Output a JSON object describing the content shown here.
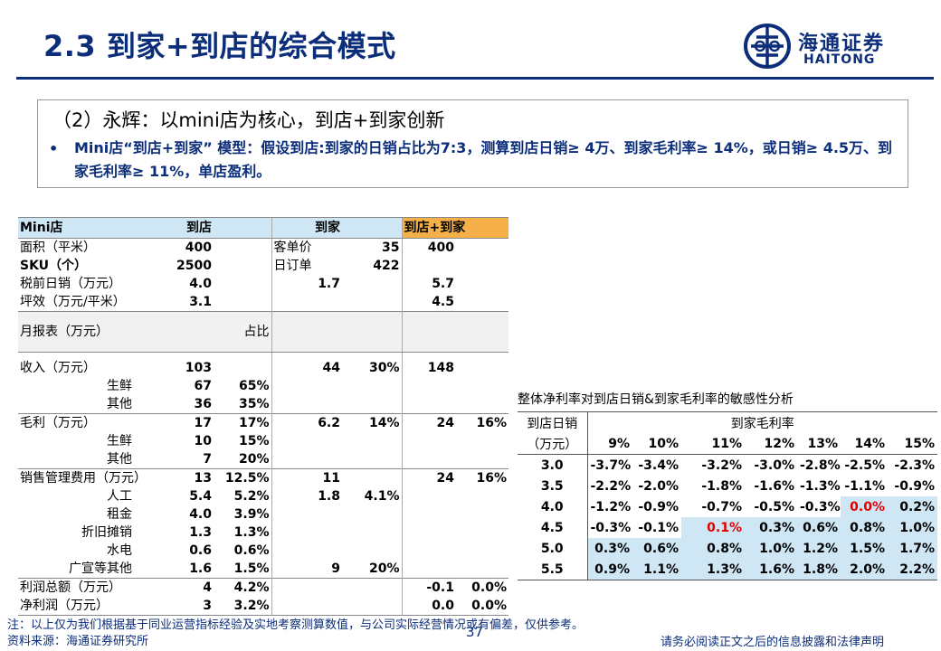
{
  "header": {
    "title": "2.3 到家+到店的综合模式",
    "logo_cn": "海通证券",
    "logo_en": "HAITONG"
  },
  "box": {
    "heading": "（2）永辉：以mini店为核心，到店+到家创新",
    "bullet": "•",
    "text": "Mini店“到店+到家” 模型：假设到店:到家的日销占比为7:3，测算到店日销≥ 4万、到家毛利率≥ 14%，或日销≥ 4.5万、到家毛利率≥ 11%，单店盈利。"
  },
  "model_table": {
    "header": [
      "Mini店",
      "到店",
      "",
      "到家",
      "",
      "到店+到家",
      ""
    ],
    "rows": [
      [
        "面积（平米）",
        "400",
        "",
        "客单价",
        "35",
        "400",
        ""
      ],
      [
        "SKU（个）",
        "2500",
        "",
        "日订单",
        "422",
        "",
        ""
      ],
      [
        "税前日销（万元）",
        "4.0",
        "",
        "1.7",
        "",
        "5.7",
        ""
      ],
      [
        "坪效（万元/平米）",
        "3.1",
        "",
        "",
        "",
        "4.5",
        ""
      ]
    ],
    "report_header": [
      "月报表（万元）",
      "",
      "占比",
      "",
      "",
      "",
      ""
    ],
    "report_rows": [
      [
        "收入（万元）",
        "103",
        "",
        "44",
        "30%",
        "148",
        ""
      ],
      [
        "生鲜",
        "67",
        "65%",
        "",
        "",
        "",
        ""
      ],
      [
        "其他",
        "36",
        "35%",
        "",
        "",
        "",
        ""
      ],
      [
        "毛利（万元）",
        "17",
        "17%",
        "6.2",
        "14%",
        "24",
        "16%"
      ],
      [
        "生鲜",
        "10",
        "15%",
        "",
        "",
        "",
        ""
      ],
      [
        "其他",
        "7",
        "20%",
        "",
        "",
        "",
        ""
      ],
      [
        "销售管理费用（万元）",
        "13",
        "12.5%",
        "11",
        "",
        "24",
        "16%"
      ],
      [
        "人工",
        "5.4",
        "5.2%",
        "1.8",
        "4.1%",
        "",
        ""
      ],
      [
        "租金",
        "4.0",
        "3.9%",
        "",
        "",
        "",
        ""
      ],
      [
        "折旧摊销",
        "1.3",
        "1.3%",
        "",
        "",
        "",
        ""
      ],
      [
        "水电",
        "0.6",
        "0.6%",
        "",
        "",
        "",
        ""
      ],
      [
        "广宣等其他",
        "1.6",
        "1.5%",
        "9",
        "20%",
        "",
        ""
      ],
      [
        "利润总额（万元）",
        "4",
        "4.2%",
        "",
        "",
        "-0.1",
        "0.0%"
      ],
      [
        "净利润（万元）",
        "3",
        "3.2%",
        "",
        "",
        "0.0",
        "0.0%"
      ]
    ]
  },
  "sensitivity": {
    "title": "整体净利率对到店日销&到家毛利率的敏感性分析",
    "row_header_1": "到店日销",
    "row_header_2": "（万元）",
    "col_header": "到家毛利率",
    "columns": [
      "9%",
      "10%",
      "11%",
      "12%",
      "13%",
      "14%",
      "15%"
    ],
    "rows": [
      {
        "label": "3.0",
        "values": [
          "-3.7%",
          "-3.4%",
          "-3.2%",
          "-3.0%",
          "-2.8%",
          "-2.5%",
          "-2.3%"
        ]
      },
      {
        "label": "3.5",
        "values": [
          "-2.2%",
          "-2.0%",
          "-1.8%",
          "-1.6%",
          "-1.3%",
          "-1.1%",
          "-0.9%"
        ]
      },
      {
        "label": "4.0",
        "values": [
          "-1.2%",
          "-0.9%",
          "-0.7%",
          "-0.5%",
          "-0.3%",
          "0.0%",
          "0.2%"
        ]
      },
      {
        "label": "4.5",
        "values": [
          "-0.3%",
          "-0.1%",
          "0.1%",
          "0.3%",
          "0.6%",
          "0.8%",
          "1.0%"
        ]
      },
      {
        "label": "5.0",
        "values": [
          "0.3%",
          "0.6%",
          "0.8%",
          "1.0%",
          "1.2%",
          "1.5%",
          "1.7%"
        ]
      },
      {
        "label": "5.5",
        "values": [
          "0.9%",
          "1.1%",
          "1.3%",
          "1.6%",
          "1.8%",
          "2.0%",
          "2.2%"
        ]
      }
    ],
    "highlight_color": "#cfe7f5",
    "red_color": "#e00000"
  },
  "footer": {
    "note": "注：以上仅为我们根据基于同业运营指标经验及实地考察测算数值，与公司实际经营情况或有偏差，仅供参考。",
    "source": "资料来源：海通证券研究所",
    "page": "37",
    "disclaimer": "请务必阅读正文之后的信息披露和法律声明"
  }
}
